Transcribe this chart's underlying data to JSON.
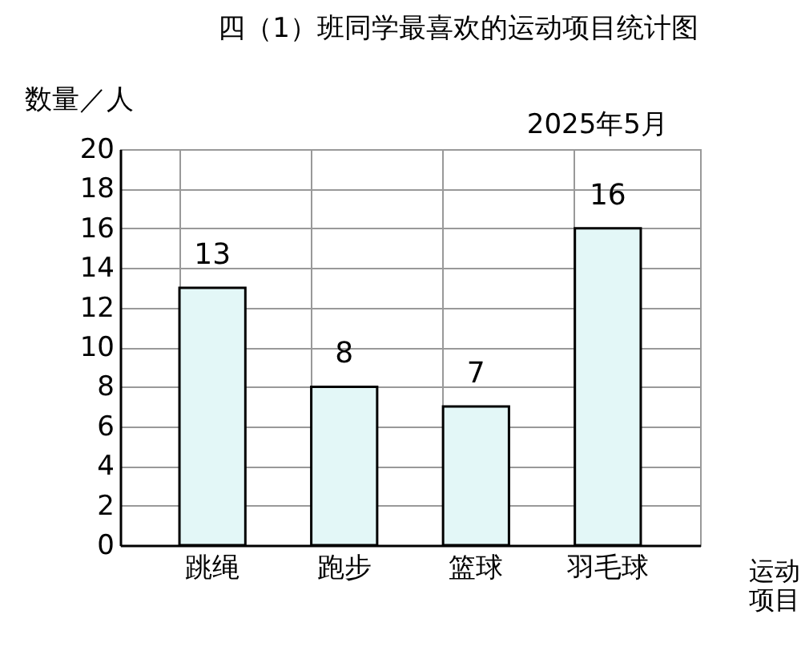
{
  "chart_data": {
    "type": "bar",
    "title": "四（1）班同学最喜欢的运动项目统计图",
    "subtitle": "2025年5月",
    "ylabel": "数量／人",
    "xlabel": "运动项目",
    "categories": [
      "跳绳",
      "跑步",
      "篮球",
      "羽毛球"
    ],
    "values": [
      13,
      8,
      7,
      16
    ],
    "color": "#e3f7f7",
    "ylim": [
      0,
      20
    ],
    "yticks": [
      0,
      2,
      4,
      6,
      8,
      10,
      12,
      14,
      16,
      18,
      20
    ],
    "grid": true,
    "data_labels": true
  }
}
